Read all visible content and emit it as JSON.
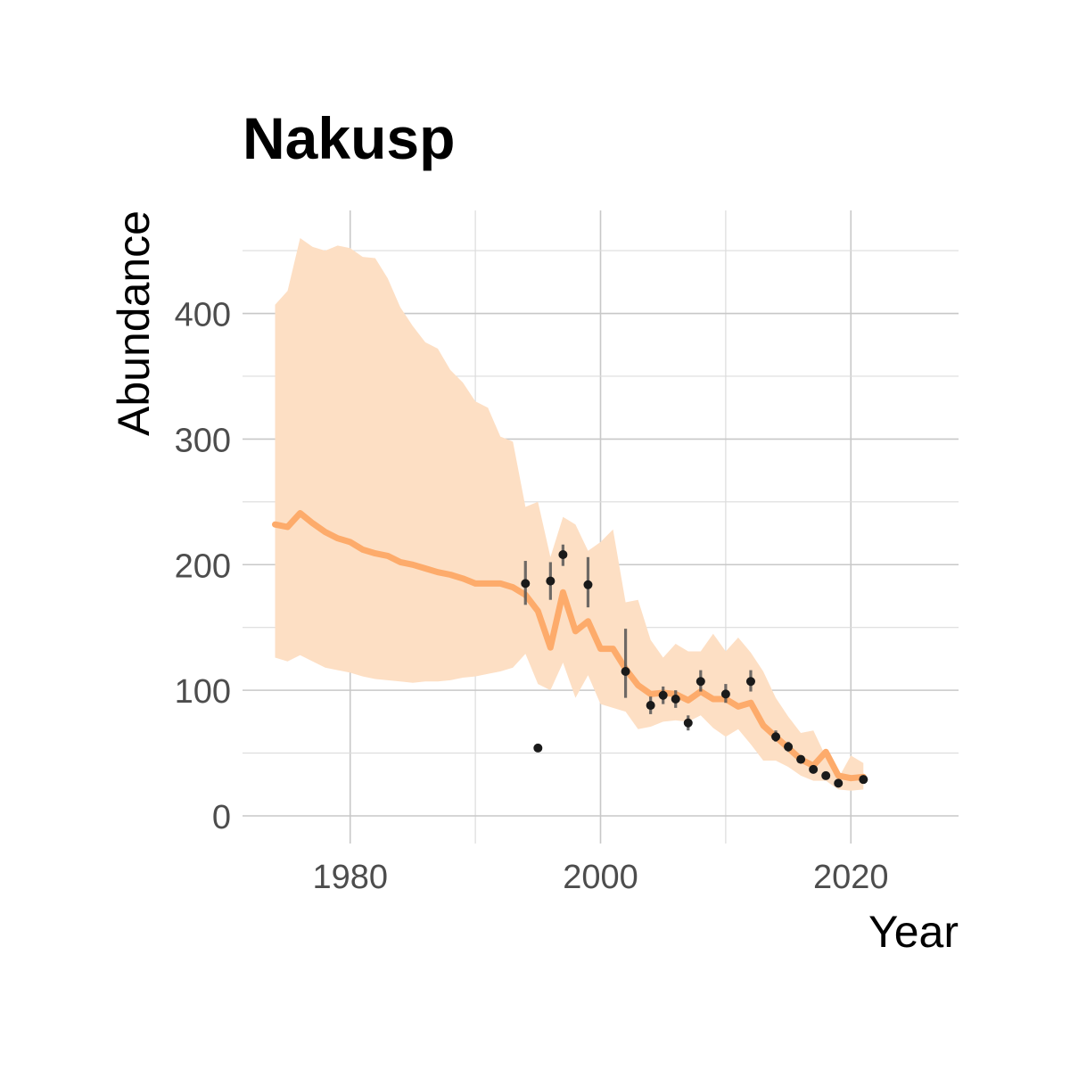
{
  "chart_data": {
    "type": "line",
    "title": "Nakusp",
    "xlabel": "Year",
    "ylabel": "Abundance",
    "xlim": [
      1971.4,
      2028.6
    ],
    "ylim": [
      -22,
      482
    ],
    "x_ticks": [
      1980,
      2000,
      2020
    ],
    "y_ticks": [
      0,
      100,
      200,
      300,
      400
    ],
    "grid": true,
    "legend": "none",
    "colors": {
      "line": "#fdab6b",
      "ribbon": "#fddfc4",
      "points": "#1a1a1a",
      "errorbars": "#555555"
    },
    "series": [
      {
        "kind": "estimate_with_interval",
        "x": [
          1974,
          1975,
          1976,
          1977,
          1978,
          1979,
          1980,
          1981,
          1982,
          1983,
          1984,
          1985,
          1986,
          1987,
          1988,
          1989,
          1990,
          1991,
          1992,
          1993,
          1994,
          1995,
          1996,
          1997,
          1998,
          1999,
          2000,
          2001,
          2002,
          2003,
          2004,
          2005,
          2006,
          2007,
          2008,
          2009,
          2010,
          2011,
          2012,
          2013,
          2014,
          2015,
          2016,
          2017,
          2018,
          2019,
          2020,
          2021
        ],
        "y": [
          232,
          230,
          241,
          233,
          226,
          221,
          218,
          212,
          209,
          207,
          202,
          200,
          197,
          194,
          192,
          189,
          185,
          185,
          185,
          182,
          176,
          163,
          134,
          178,
          147,
          155,
          133,
          133,
          117,
          104,
          97,
          98,
          97,
          92,
          99,
          93,
          93,
          87,
          90,
          72,
          63,
          54,
          45,
          40,
          51,
          32,
          30,
          31
        ],
        "lower": [
          126,
          123,
          128,
          123,
          118,
          116,
          114,
          111,
          109,
          108,
          107,
          106,
          107,
          107,
          108,
          110,
          111,
          113,
          115,
          118,
          129,
          105,
          100,
          122,
          94,
          112,
          89,
          86,
          83,
          69,
          71,
          75,
          76,
          75,
          80,
          70,
          63,
          69,
          57,
          44,
          44,
          39,
          32,
          28,
          28,
          21,
          20,
          21
        ],
        "upper": [
          407,
          418,
          460,
          453,
          450,
          454,
          452,
          445,
          444,
          428,
          405,
          390,
          377,
          372,
          355,
          345,
          330,
          325,
          302,
          298,
          246,
          250,
          206,
          238,
          232,
          211,
          218,
          228,
          170,
          172,
          140,
          126,
          137,
          131,
          131,
          145,
          131,
          142,
          130,
          115,
          94,
          79,
          66,
          68,
          47,
          30,
          48,
          42
        ]
      },
      {
        "kind": "observations",
        "x": [
          1994,
          1995,
          1996,
          1997,
          1999,
          2002,
          2004,
          2005,
          2006,
          2007,
          2008,
          2010,
          2012,
          2014,
          2015,
          2016,
          2017,
          2018,
          2019,
          2021
        ],
        "y": [
          185,
          54,
          187,
          208,
          184,
          115,
          88,
          96,
          93,
          74,
          107,
          97,
          107,
          63,
          55,
          45,
          37,
          32,
          26,
          29
        ],
        "lower": [
          168,
          51,
          172,
          199,
          166,
          94,
          81,
          89,
          86,
          68,
          99,
          90,
          99,
          59,
          51,
          42,
          35,
          30,
          24,
          27
        ],
        "upper": [
          203,
          57,
          202,
          216,
          206,
          149,
          95,
          103,
          100,
          80,
          116,
          105,
          116,
          68,
          59,
          48,
          39,
          34,
          28,
          31
        ]
      }
    ]
  }
}
